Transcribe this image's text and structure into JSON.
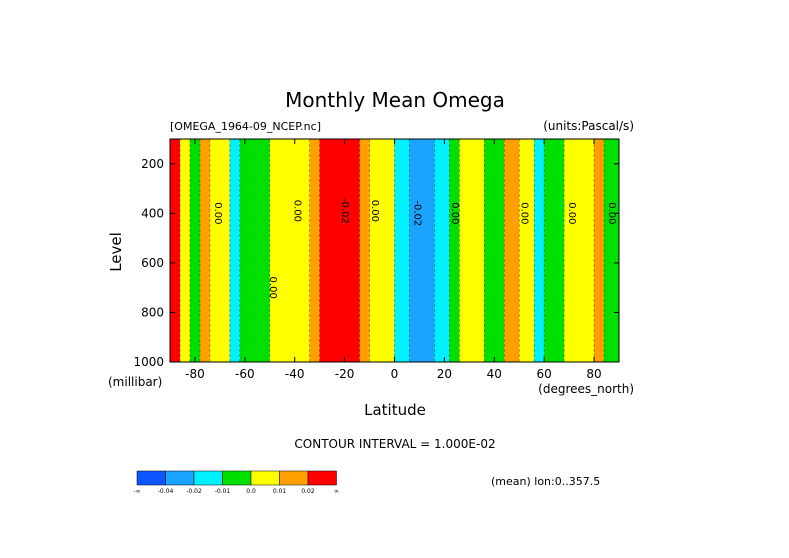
{
  "chart_data": {
    "type": "heatmap",
    "title": "Monthly Mean Omega",
    "source_label": "[OMEGA_1964-09_NCEP.nc]",
    "units_label": "(units:Pascal/s)",
    "xlabel": "Latitude",
    "ylabel": "Level",
    "x_unit": "(degrees_north)",
    "y_unit": "(millibar)",
    "xlim": [
      -90,
      90
    ],
    "ylim": [
      1000,
      100
    ],
    "x_ticks": [
      {
        "value": -80,
        "label": "-80"
      },
      {
        "value": -60,
        "label": "-60"
      },
      {
        "value": -40,
        "label": "-40"
      },
      {
        "value": -20,
        "label": "-20"
      },
      {
        "value": 0,
        "label": "0"
      },
      {
        "value": 20,
        "label": "20"
      },
      {
        "value": 40,
        "label": "40"
      },
      {
        "value": 60,
        "label": "60"
      },
      {
        "value": 80,
        "label": "80"
      }
    ],
    "y_ticks": [
      {
        "value": 200,
        "label": "200"
      },
      {
        "value": 400,
        "label": "400"
      },
      {
        "value": 600,
        "label": "600"
      },
      {
        "value": 800,
        "label": "800"
      },
      {
        "value": 1000,
        "label": "1000"
      }
    ],
    "contour_labels": [
      {
        "text": "0.00",
        "lat": -72,
        "lev": 400,
        "rotate": true
      },
      {
        "text": "0.00",
        "lat": -40,
        "lev": 390,
        "rotate": true
      },
      {
        "text": "-0.02",
        "lat": -21,
        "lev": 390,
        "rotate": true
      },
      {
        "text": "0.00",
        "lat": -9,
        "lev": 390,
        "rotate": true
      },
      {
        "text": "-0.02",
        "lat": 8,
        "lev": 400,
        "rotate": true
      },
      {
        "text": "0.00",
        "lat": 23,
        "lev": 400,
        "rotate": true
      },
      {
        "text": "0.00",
        "lat": 51,
        "lev": 400,
        "rotate": true
      },
      {
        "text": "0.00",
        "lat": 70,
        "lev": 400,
        "rotate": true
      },
      {
        "text": "0.00",
        "lat": 86,
        "lev": 400,
        "rotate": true
      },
      {
        "text": "0.00",
        "lat": -50,
        "lev": 700,
        "rotate": true
      }
    ],
    "contour_interval_text": "CONTOUR INTERVAL = 1.000E-02",
    "mean_text": "(mean) lon:0..357.5",
    "colorbar": {
      "colors": [
        "#0d56ff",
        "#1aa3ff",
        "#00f0ff",
        "#00e000",
        "#ffff00",
        "#ffa000",
        "#ff0000"
      ],
      "labels": [
        "-∞",
        "-0.04",
        "-0.02",
        "-0.01",
        "0.0",
        "0.01",
        "0.02",
        "∞"
      ]
    },
    "bands_by_latitude": [
      {
        "lat": [
          -90,
          -86
        ],
        "color": "#ff0000"
      },
      {
        "lat": [
          -86,
          -82
        ],
        "color": "#ffff00"
      },
      {
        "lat": [
          -82,
          -78
        ],
        "color": "#00e000"
      },
      {
        "lat": [
          -78,
          -74
        ],
        "color": "#ffa000"
      },
      {
        "lat": [
          -74,
          -66
        ],
        "color": "#ffff00"
      },
      {
        "lat": [
          -66,
          -62
        ],
        "color": "#00f0ff"
      },
      {
        "lat": [
          -62,
          -50
        ],
        "color": "#00e000"
      },
      {
        "lat": [
          -50,
          -34
        ],
        "color": "#ffff00"
      },
      {
        "lat": [
          -34,
          -30
        ],
        "color": "#ffa000"
      },
      {
        "lat": [
          -30,
          -14
        ],
        "color": "#ff0000"
      },
      {
        "lat": [
          -14,
          -10
        ],
        "color": "#ffa000"
      },
      {
        "lat": [
          -10,
          0
        ],
        "color": "#ffff00"
      },
      {
        "lat": [
          0,
          6
        ],
        "color": "#00f0ff"
      },
      {
        "lat": [
          6,
          16
        ],
        "color": "#1aa3ff"
      },
      {
        "lat": [
          16,
          22
        ],
        "color": "#00f0ff"
      },
      {
        "lat": [
          22,
          26
        ],
        "color": "#00e000"
      },
      {
        "lat": [
          26,
          36
        ],
        "color": "#ffff00"
      },
      {
        "lat": [
          36,
          44
        ],
        "color": "#00e000"
      },
      {
        "lat": [
          44,
          50
        ],
        "color": "#ffa000"
      },
      {
        "lat": [
          50,
          56
        ],
        "color": "#ffff00"
      },
      {
        "lat": [
          56,
          60
        ],
        "color": "#00f0ff"
      },
      {
        "lat": [
          60,
          68
        ],
        "color": "#00e000"
      },
      {
        "lat": [
          68,
          80
        ],
        "color": "#ffff00"
      },
      {
        "lat": [
          80,
          84
        ],
        "color": "#ffa000"
      },
      {
        "lat": [
          84,
          90
        ],
        "color": "#00e000"
      }
    ]
  }
}
